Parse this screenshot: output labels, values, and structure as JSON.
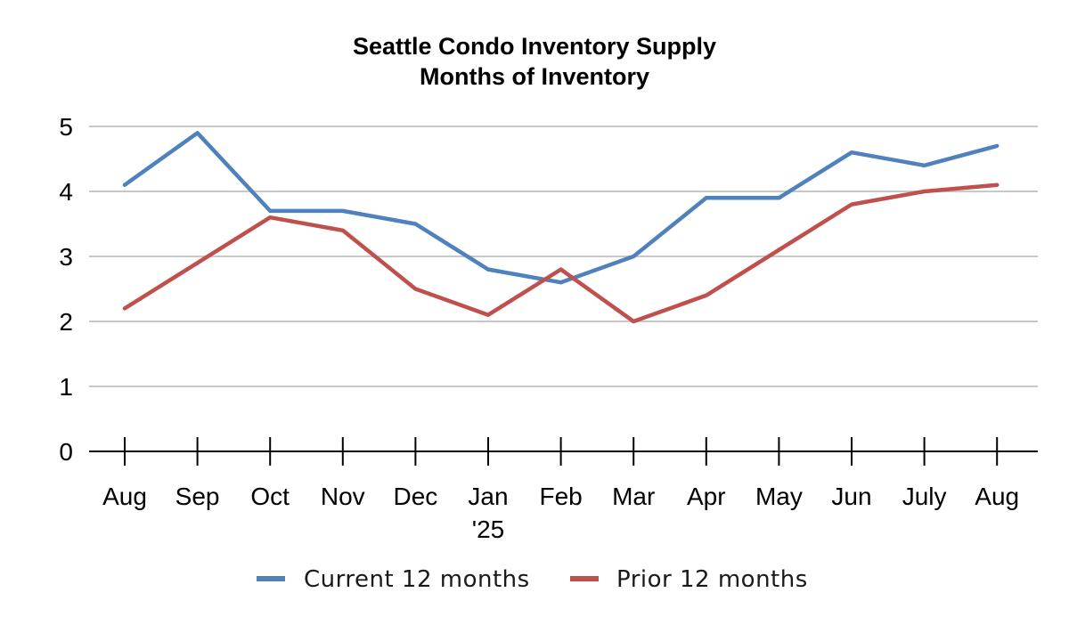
{
  "chart_data": {
    "type": "line",
    "title": "Seattle Condo Inventory Supply",
    "subtitle": "Months of Inventory",
    "xlabel": "",
    "ylabel": "",
    "categories": [
      "Aug",
      "Sep",
      "Oct",
      "Nov",
      "Dec",
      "Jan",
      "Feb",
      "Mar",
      "Apr",
      "May",
      "Jun",
      "July",
      "Aug"
    ],
    "category_sublabels": [
      "",
      "",
      "",
      "",
      "",
      "'25",
      "",
      "",
      "",
      "",
      "",
      "",
      ""
    ],
    "ylim": [
      0,
      5
    ],
    "yticks": [
      0,
      1,
      2,
      3,
      4,
      5
    ],
    "grid": true,
    "legend_position": "bottom",
    "series": [
      {
        "name": "Current 12 months",
        "color": "#4f81bd",
        "values": [
          4.1,
          4.9,
          3.7,
          3.7,
          3.5,
          2.8,
          2.6,
          3.0,
          3.9,
          3.9,
          4.6,
          4.4,
          4.7
        ]
      },
      {
        "name": "Prior 12 months",
        "color": "#c0504d",
        "values": [
          2.2,
          2.9,
          3.6,
          3.4,
          2.5,
          2.1,
          2.8,
          2.0,
          2.4,
          3.1,
          3.8,
          4.0,
          4.1
        ]
      }
    ]
  }
}
